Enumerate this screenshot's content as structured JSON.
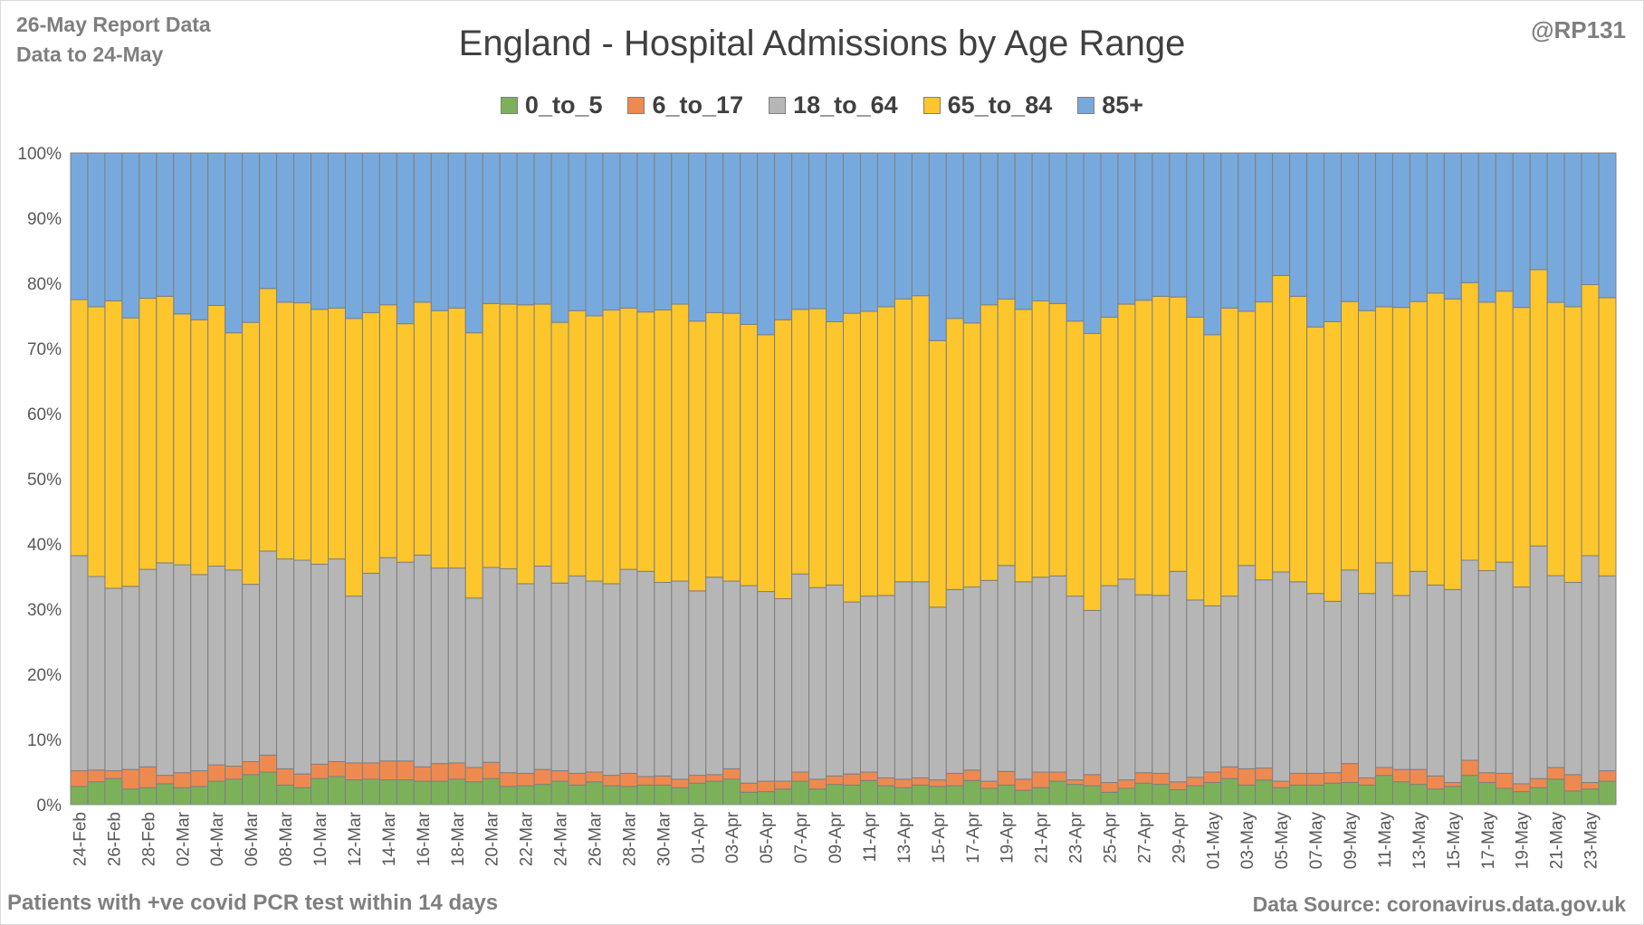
{
  "header": {
    "report_line": "26-May Report Data",
    "data_line": "Data to 24-May",
    "handle": "@RP131"
  },
  "footer": {
    "note": "Patients with  +ve covid PCR test within 14 days",
    "source": "Data Source: coronavirus.data.gov.uk"
  },
  "chart_data": {
    "type": "bar",
    "stacked": true,
    "percent_stacked": true,
    "title": "England - Hospital Admissions by Age Range",
    "ylim": [
      0,
      100
    ],
    "y_ticks": [
      "0%",
      "10%",
      "20%",
      "30%",
      "40%",
      "50%",
      "60%",
      "70%",
      "80%",
      "90%",
      "100%"
    ],
    "grid": true,
    "legend_position": "top",
    "tick_every": 2,
    "categories": [
      "24-Feb",
      "25-Feb",
      "26-Feb",
      "27-Feb",
      "28-Feb",
      "01-Mar",
      "02-Mar",
      "03-Mar",
      "04-Mar",
      "05-Mar",
      "06-Mar",
      "07-Mar",
      "08-Mar",
      "09-Mar",
      "10-Mar",
      "11-Mar",
      "12-Mar",
      "13-Mar",
      "14-Mar",
      "15-Mar",
      "16-Mar",
      "17-Mar",
      "18-Mar",
      "19-Mar",
      "20-Mar",
      "21-Mar",
      "22-Mar",
      "23-Mar",
      "24-Mar",
      "25-Mar",
      "26-Mar",
      "27-Mar",
      "28-Mar",
      "29-Mar",
      "30-Mar",
      "31-Mar",
      "01-Apr",
      "02-Apr",
      "03-Apr",
      "04-Apr",
      "05-Apr",
      "06-Apr",
      "07-Apr",
      "08-Apr",
      "09-Apr",
      "10-Apr",
      "11-Apr",
      "12-Apr",
      "13-Apr",
      "14-Apr",
      "15-Apr",
      "16-Apr",
      "17-Apr",
      "18-Apr",
      "19-Apr",
      "20-Apr",
      "21-Apr",
      "22-Apr",
      "23-Apr",
      "24-Apr",
      "25-Apr",
      "26-Apr",
      "27-Apr",
      "28-Apr",
      "29-Apr",
      "30-Apr",
      "01-May",
      "02-May",
      "03-May",
      "04-May",
      "05-May",
      "06-May",
      "07-May",
      "08-May",
      "09-May",
      "10-May",
      "11-May",
      "12-May",
      "13-May",
      "14-May",
      "15-May",
      "16-May",
      "17-May",
      "18-May",
      "19-May",
      "20-May",
      "21-May",
      "22-May",
      "23-May",
      "24-May"
    ],
    "series": [
      {
        "name": "0_to_5",
        "color": "#7cb15a",
        "values": [
          2.8,
          3.5,
          4.0,
          2.4,
          2.6,
          3.2,
          2.6,
          2.8,
          3.6,
          3.9,
          4.6,
          5.0,
          3.0,
          2.6,
          4.0,
          4.3,
          3.8,
          3.9,
          3.8,
          3.8,
          3.6,
          3.6,
          3.9,
          3.5,
          4.0,
          2.8,
          2.9,
          3.1,
          3.6,
          3.0,
          3.5,
          2.9,
          2.8,
          3.0,
          3.0,
          2.6,
          3.3,
          3.6,
          3.9,
          1.9,
          2.0,
          2.4,
          3.6,
          2.4,
          3.1,
          3.0,
          3.7,
          2.9,
          2.6,
          3.0,
          2.8,
          2.9,
          3.7,
          2.5,
          3.0,
          2.2,
          2.6,
          3.6,
          3.1,
          2.9,
          1.9,
          2.5,
          3.3,
          3.1,
          2.3,
          2.9,
          3.4,
          4.0,
          3.0,
          3.7,
          2.6,
          3.0,
          3.0,
          3.3,
          3.4,
          3.0,
          4.5,
          3.5,
          3.1,
          2.4,
          2.8,
          4.5,
          3.4,
          2.5,
          2.0,
          2.6,
          3.9,
          2.1,
          2.4,
          3.6
        ]
      },
      {
        "name": "6_to_17",
        "color": "#ee8a50",
        "values": [
          2.4,
          1.8,
          1.2,
          3.0,
          3.2,
          1.3,
          2.3,
          2.4,
          2.5,
          2.0,
          2.0,
          2.6,
          2.5,
          2.1,
          2.2,
          2.3,
          2.6,
          2.5,
          2.9,
          2.9,
          2.2,
          2.7,
          2.5,
          2.2,
          2.5,
          2.1,
          1.9,
          2.3,
          1.6,
          1.8,
          1.5,
          1.6,
          2.0,
          1.3,
          1.4,
          1.3,
          1.2,
          1.0,
          1.6,
          1.4,
          1.6,
          1.2,
          1.4,
          1.5,
          1.3,
          1.7,
          1.3,
          1.2,
          1.3,
          1.1,
          1.0,
          1.9,
          1.6,
          1.1,
          2.1,
          1.7,
          2.4,
          1.4,
          0.7,
          1.7,
          1.5,
          1.3,
          1.6,
          1.7,
          1.2,
          1.3,
          1.6,
          1.8,
          2.5,
          1.8,
          1.0,
          1.8,
          1.8,
          1.6,
          2.9,
          1.1,
          1.2,
          1.9,
          2.3,
          2.0,
          0.6,
          2.3,
          1.5,
          2.3,
          1.2,
          1.4,
          1.8,
          2.5,
          1.0,
          1.6
        ]
      },
      {
        "name": "18_to_64",
        "color": "#b6b6b6",
        "values": [
          33.0,
          29.7,
          28.0,
          28.1,
          30.3,
          32.6,
          31.9,
          30.1,
          30.5,
          30.1,
          27.2,
          31.3,
          32.2,
          32.8,
          30.7,
          31.1,
          25.6,
          29.1,
          31.2,
          30.5,
          32.5,
          30.0,
          29.9,
          26.0,
          29.9,
          31.3,
          29.1,
          31.2,
          28.8,
          30.3,
          29.3,
          29.4,
          31.3,
          31.5,
          29.7,
          30.4,
          28.3,
          30.3,
          28.8,
          30.3,
          29.1,
          28.0,
          30.4,
          29.4,
          29.3,
          26.4,
          27.0,
          28.0,
          30.3,
          30.1,
          26.5,
          28.2,
          28.1,
          30.8,
          31.6,
          30.3,
          29.9,
          30.1,
          28.2,
          25.2,
          30.2,
          30.8,
          27.3,
          27.3,
          32.3,
          27.2,
          25.5,
          26.2,
          31.2,
          28.3,
          32.1,
          29.4,
          27.6,
          26.3,
          29.7,
          28.3,
          31.4,
          26.7,
          30.4,
          29.3,
          29.6,
          30.7,
          31.0,
          32.4,
          30.2,
          35.7,
          29.4,
          29.5,
          34.8,
          29.9
        ]
      },
      {
        "name": "65_to_84",
        "color": "#fdc62c",
        "values": [
          39.3,
          41.4,
          44.1,
          41.2,
          41.6,
          40.9,
          38.5,
          39.1,
          40.0,
          36.4,
          40.2,
          40.3,
          39.4,
          39.5,
          39.1,
          38.5,
          42.6,
          40.0,
          38.8,
          36.6,
          38.8,
          39.5,
          39.9,
          40.7,
          40.5,
          40.6,
          42.8,
          40.2,
          40.0,
          40.7,
          40.7,
          42.0,
          40.1,
          39.8,
          41.8,
          42.5,
          41.4,
          40.6,
          41.1,
          40.1,
          39.4,
          42.8,
          40.6,
          42.8,
          40.4,
          44.3,
          43.7,
          44.3,
          43.4,
          43.9,
          40.9,
          41.6,
          40.5,
          42.3,
          40.9,
          41.8,
          42.4,
          41.8,
          42.2,
          42.5,
          41.2,
          42.2,
          45.2,
          45.9,
          42.1,
          43.4,
          41.6,
          44.2,
          39.0,
          41.8,
          45.5,
          43.8,
          40.9,
          42.9,
          41.2,
          43.4,
          39.3,
          44.2,
          41.4,
          44.8,
          44.6,
          42.6,
          41.2,
          41.6,
          42.9,
          42.4,
          41.9,
          42.3,
          41.6,
          42.7
        ]
      },
      {
        "name": "85+",
        "color": "#77a9dc",
        "values": [
          22.5,
          23.6,
          22.7,
          25.3,
          22.3,
          22.0,
          24.7,
          25.6,
          23.4,
          27.6,
          26.0,
          20.8,
          22.9,
          23.0,
          24.0,
          23.8,
          25.4,
          24.5,
          23.3,
          26.2,
          22.9,
          24.2,
          23.8,
          27.6,
          23.1,
          23.2,
          23.3,
          23.2,
          26.0,
          24.2,
          25.0,
          24.1,
          23.8,
          24.4,
          24.1,
          23.2,
          25.8,
          24.5,
          24.6,
          26.3,
          27.9,
          25.6,
          24.0,
          23.9,
          25.9,
          24.6,
          24.3,
          23.6,
          22.4,
          21.9,
          28.8,
          25.4,
          26.1,
          23.3,
          22.4,
          24.0,
          22.7,
          23.1,
          25.8,
          27.7,
          25.2,
          23.2,
          22.6,
          22.0,
          22.1,
          25.2,
          27.9,
          23.8,
          24.3,
          22.4,
          18.8,
          22.0,
          26.7,
          25.9,
          22.8,
          24.2,
          23.6,
          23.7,
          22.8,
          21.5,
          22.4,
          19.9,
          22.9,
          21.2,
          23.7,
          17.9,
          22.9,
          23.6,
          20.2,
          22.2
        ]
      }
    ]
  }
}
